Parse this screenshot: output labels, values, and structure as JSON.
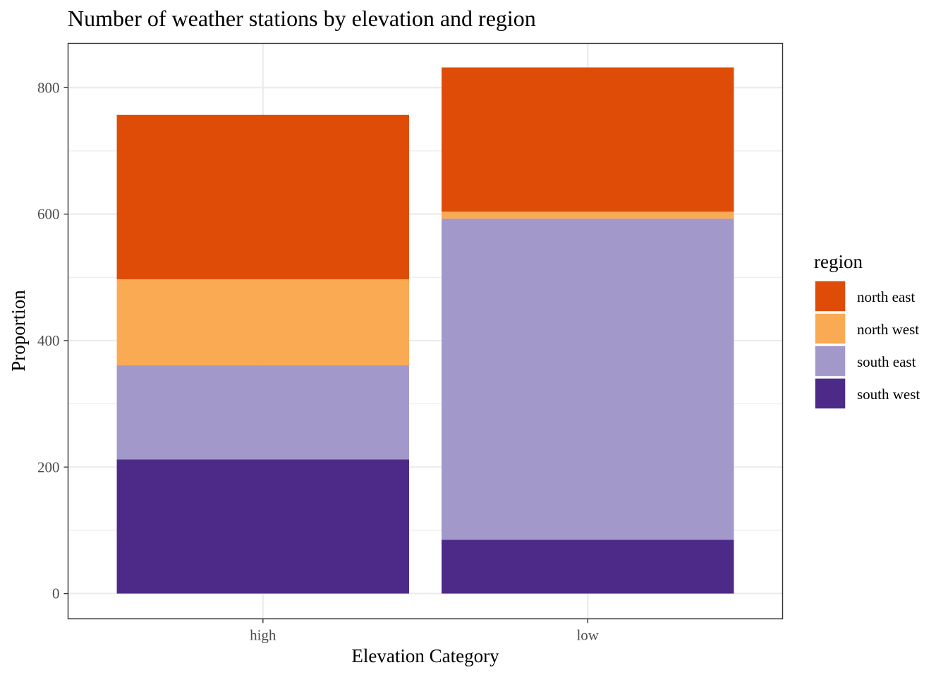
{
  "chart_data": {
    "type": "bar",
    "stacked": true,
    "title": "Number of weather stations by elevation and region",
    "xlabel": "Elevation Category",
    "ylabel": "Proportion",
    "categories": [
      "high",
      "low"
    ],
    "ylim": [
      -40,
      870
    ],
    "yticks": [
      0,
      200,
      400,
      600,
      800
    ],
    "grid": true,
    "legend": {
      "title": "region",
      "position": "right"
    },
    "series": [
      {
        "name": "south west",
        "color": "#4D2A88",
        "values": [
          212,
          85
        ]
      },
      {
        "name": "south east",
        "color": "#A299CA",
        "values": [
          149,
          508
        ]
      },
      {
        "name": "north west",
        "color": "#FBAA54",
        "values": [
          136,
          11
        ]
      },
      {
        "name": "north east",
        "color": "#DE4C08",
        "values": [
          260,
          228
        ]
      }
    ],
    "legend_order": [
      "north east",
      "north west",
      "south east",
      "south west"
    ]
  }
}
